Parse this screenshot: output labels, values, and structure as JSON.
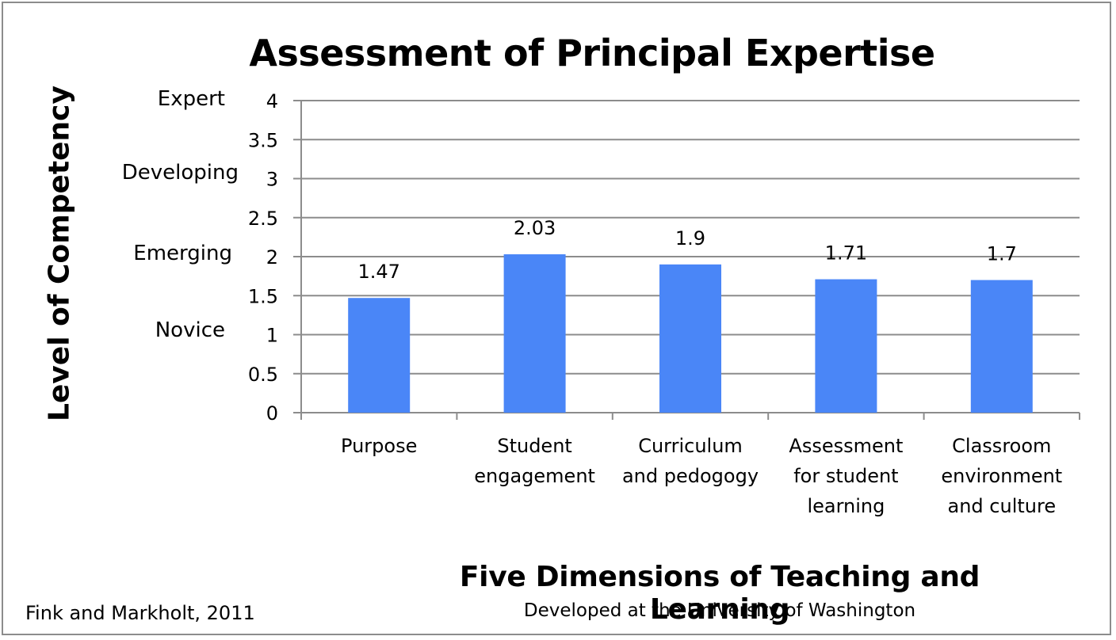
{
  "chart_data": {
    "type": "bar",
    "title": "Assessment of Principal Expertise",
    "ylabel": "Level of Competency",
    "xlabel": "Five Dimensions of Teaching and Learning",
    "subtitle": "Developed at the University of Washington",
    "credit": "Fink and Markholt, 2011",
    "categories": [
      [
        "Purpose"
      ],
      [
        "Student",
        "engagement"
      ],
      [
        "Curriculum",
        "and pedogogy"
      ],
      [
        "Assessment",
        "for student",
        "learning"
      ],
      [
        "Classroom",
        "environment",
        "and culture"
      ]
    ],
    "values": [
      1.47,
      2.03,
      1.9,
      1.71,
      1.7
    ],
    "data_labels": [
      "1.47",
      "2.03",
      "1.9",
      "1.71",
      "1.7"
    ],
    "ylim": [
      0,
      4
    ],
    "yticks": [
      "0",
      "0.5",
      "1",
      "1.5",
      "2",
      "2.5",
      "3",
      "3.5",
      "4"
    ],
    "competency_levels": [
      {
        "label": "Expert",
        "value": 4
      },
      {
        "label": "Developing",
        "value": 3
      },
      {
        "label": "Emerging",
        "value": 2
      },
      {
        "label": "Novice",
        "value": 1
      }
    ],
    "grid": true,
    "legend": "none",
    "bar_color": "#4a86f7",
    "grid_color": "#8c8c8c"
  }
}
